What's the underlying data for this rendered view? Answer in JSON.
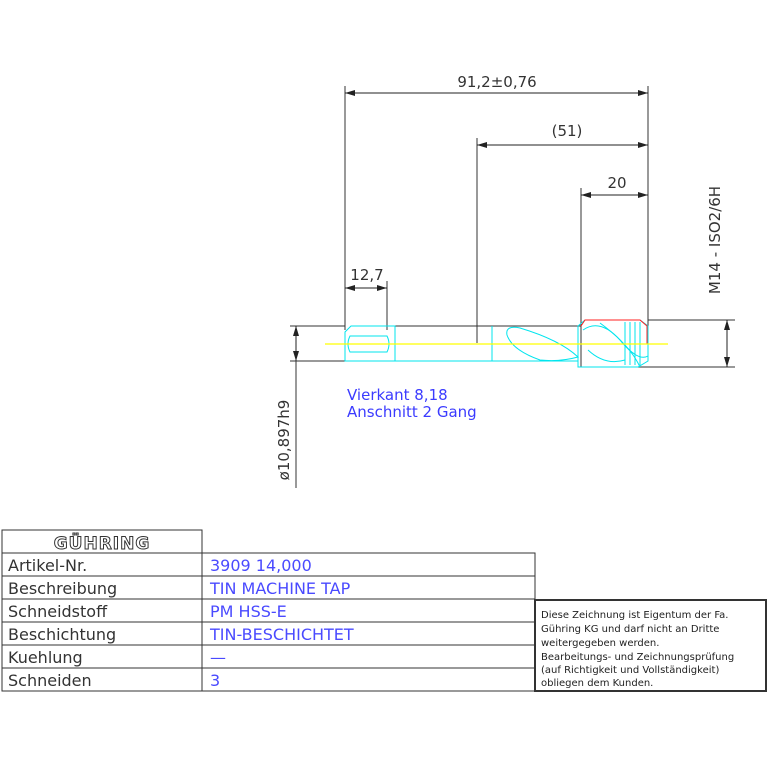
{
  "dimensions": {
    "overall_length": "91,2±0,76",
    "flute_length": "(51)",
    "thread_length": "20",
    "square_length": "12,7",
    "shank_diameter": "ø10,897h9",
    "thread": "M14 - ISO2/6H"
  },
  "notes": {
    "square": "Vierkant 8,18",
    "chamfer": "Anschnitt 2 Gang"
  },
  "title_block": {
    "logo": "GÜHRING",
    "rows": [
      {
        "label": "Artikel-Nr.",
        "value": "3909 14,000"
      },
      {
        "label": "Beschreibung",
        "value": "TIN MACHINE TAP"
      },
      {
        "label": "Schneidstoff",
        "value": "PM HSS-E"
      },
      {
        "label": "Beschichtung",
        "value": "TIN-BESCHICHTET"
      },
      {
        "label": "Kuehlung",
        "value": "—"
      },
      {
        "label": "Schneiden",
        "value": "3"
      }
    ],
    "disclaimer": [
      "Diese Zeichnung ist Eigentum der Fa.",
      "Gühring KG und darf nicht an Dritte",
      "weitergegeben werden.",
      "Bearbeitungs- und Zeichnungsprüfung",
      "(auf Richtigkeit und Vollständigkeit)",
      "obliegen dem Kunden."
    ]
  },
  "colors": {
    "dimension": "#333333",
    "tool_outline": "#00e5ee",
    "centerline": "#ffff00",
    "thread_edge": "#ff2020",
    "text_blue": "#4a4aff"
  }
}
